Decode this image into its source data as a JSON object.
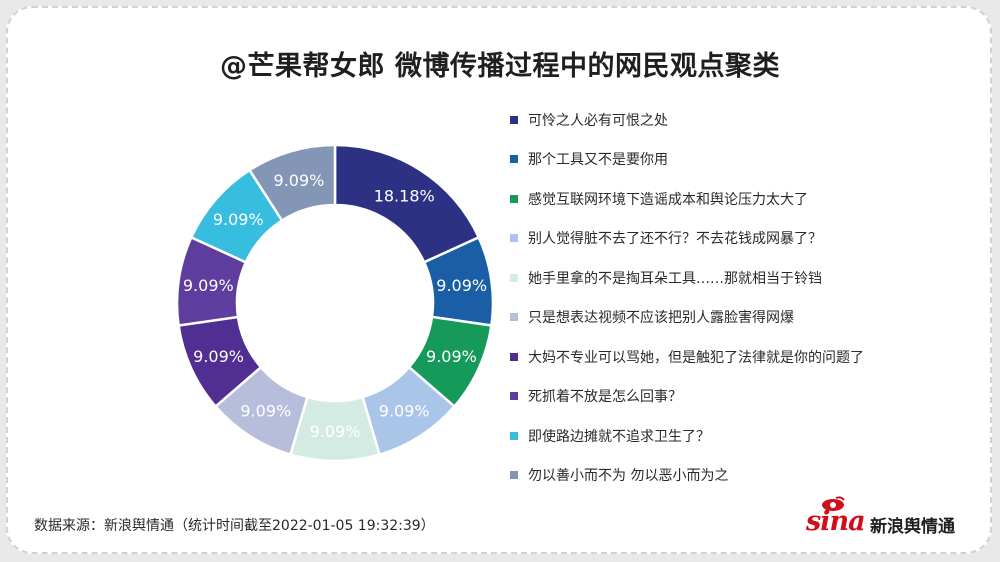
{
  "title": "@芒果帮女郎 微博传播过程中的网民观点聚类",
  "chart_data": {
    "type": "pie",
    "donut": true,
    "categories": [
      "可怜之人必有可恨之处",
      "那个工具又不是要你用",
      "感觉互联网环境下造谣成本和舆论压力太大了",
      "别人觉得脏不去了还不行？不去花钱成网暴了？",
      "她手里拿的不是掏耳朵工具……那就相当于铃铛",
      "只是想表达视频不应该把别人露脸害得网爆",
      "大妈不专业可以骂她，但是触犯了法律就是你的问题了",
      "死抓着不放是怎么回事？",
      "即使路边摊就不追求卫生了？",
      "勿以善小而不为 勿以恶小而为之"
    ],
    "values": [
      18.18,
      9.09,
      9.09,
      9.09,
      9.09,
      9.09,
      9.09,
      9.09,
      9.09,
      9.09
    ],
    "labels": [
      "18.18%",
      "9.09%",
      "9.09%",
      "9.09%",
      "9.09%",
      "9.09%",
      "9.09%",
      "9.09%",
      "9.09%",
      "9.09%"
    ],
    "colors": [
      "#2c3184",
      "#1a5fa5",
      "#169a5a",
      "#a9c5e8",
      "#d4ebe4",
      "#b7bedc",
      "#512e91",
      "#5d3d9e",
      "#36bde0",
      "#8496b6"
    ],
    "label_colors": [
      "#ffffff",
      "#ffffff",
      "#ffffff",
      "#ffffff",
      "#ffffff",
      "#ffffff",
      "#ffffff",
      "#ffffff",
      "#ffffff",
      "#ffffff"
    ],
    "legend_position": "right"
  },
  "footer": {
    "source": "数据来源：新浪舆情通（统计时间截至2022-01-05 19:32:39）"
  },
  "logo": {
    "sina": "sina",
    "name": "新浪舆情通"
  }
}
